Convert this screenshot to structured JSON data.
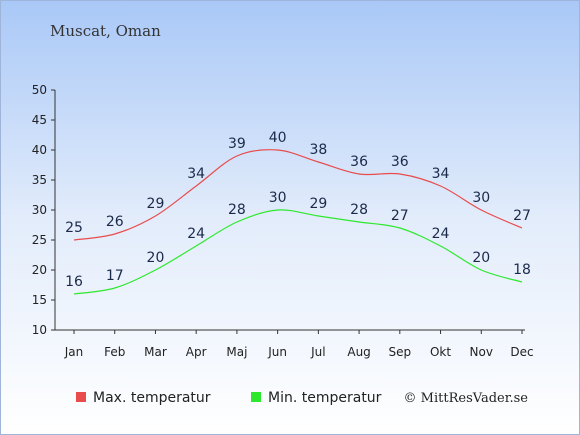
{
  "chart_data": {
    "type": "line",
    "title": "Muscat, Oman",
    "categories": [
      "Jan",
      "Feb",
      "Mar",
      "Apr",
      "Maj",
      "Jun",
      "Jul",
      "Aug",
      "Sep",
      "Okt",
      "Nov",
      "Dec"
    ],
    "series": [
      {
        "name": "Max. temperatur",
        "color": "#e84c4c",
        "values": [
          25,
          26,
          29,
          34,
          39,
          40,
          38,
          36,
          36,
          34,
          30,
          27
        ]
      },
      {
        "name": "Min. temperatur",
        "color": "#2ee82e",
        "values": [
          16,
          17,
          20,
          24,
          28,
          30,
          29,
          28,
          27,
          24,
          20,
          18
        ]
      }
    ],
    "yticks": [
      10,
      15,
      20,
      25,
      30,
      35,
      40,
      45,
      50
    ],
    "ylim": [
      10,
      50
    ],
    "grid": false,
    "legend": "bottom"
  },
  "credit": "© MittResVader.se"
}
